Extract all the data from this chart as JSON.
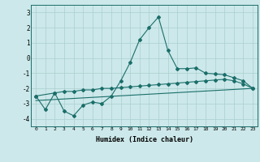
{
  "xlabel": "Humidex (Indice chaleur)",
  "xlim": [
    -0.5,
    23.5
  ],
  "ylim": [
    -4.5,
    3.5
  ],
  "yticks": [
    -4,
    -3,
    -2,
    -1,
    0,
    1,
    2,
    3
  ],
  "xticks": [
    0,
    1,
    2,
    3,
    4,
    5,
    6,
    7,
    8,
    9,
    10,
    11,
    12,
    13,
    14,
    15,
    16,
    17,
    18,
    19,
    20,
    21,
    22,
    23
  ],
  "bg_color": "#cce8ea",
  "line_color": "#1a6e6a",
  "grid_color": "#aacfcf",
  "series1_x": [
    0,
    1,
    2,
    3,
    4,
    5,
    6,
    7,
    8,
    9,
    10,
    11,
    12,
    13,
    14,
    15,
    16,
    17,
    18,
    19,
    20,
    21,
    22,
    23
  ],
  "series1_y": [
    -2.5,
    -3.4,
    -2.3,
    -3.5,
    -3.8,
    -3.1,
    -2.9,
    -3.0,
    -2.5,
    -1.5,
    -0.3,
    1.2,
    2.0,
    2.7,
    0.5,
    -0.7,
    -0.7,
    -0.65,
    -1.0,
    -1.05,
    -1.1,
    -1.3,
    -1.5,
    -2.0
  ],
  "series2_x": [
    0,
    2,
    3,
    4,
    5,
    6,
    7,
    8,
    9,
    10,
    11,
    12,
    13,
    14,
    15,
    16,
    17,
    18,
    19,
    20,
    21,
    22,
    23
  ],
  "series2_y": [
    -2.5,
    -2.3,
    -2.2,
    -2.2,
    -2.1,
    -2.1,
    -2.0,
    -2.0,
    -1.95,
    -1.9,
    -1.85,
    -1.8,
    -1.75,
    -1.7,
    -1.65,
    -1.6,
    -1.55,
    -1.5,
    -1.45,
    -1.4,
    -1.5,
    -1.7,
    -2.0
  ],
  "series3_x": [
    0,
    23
  ],
  "series3_y": [
    -2.8,
    -2.0
  ]
}
